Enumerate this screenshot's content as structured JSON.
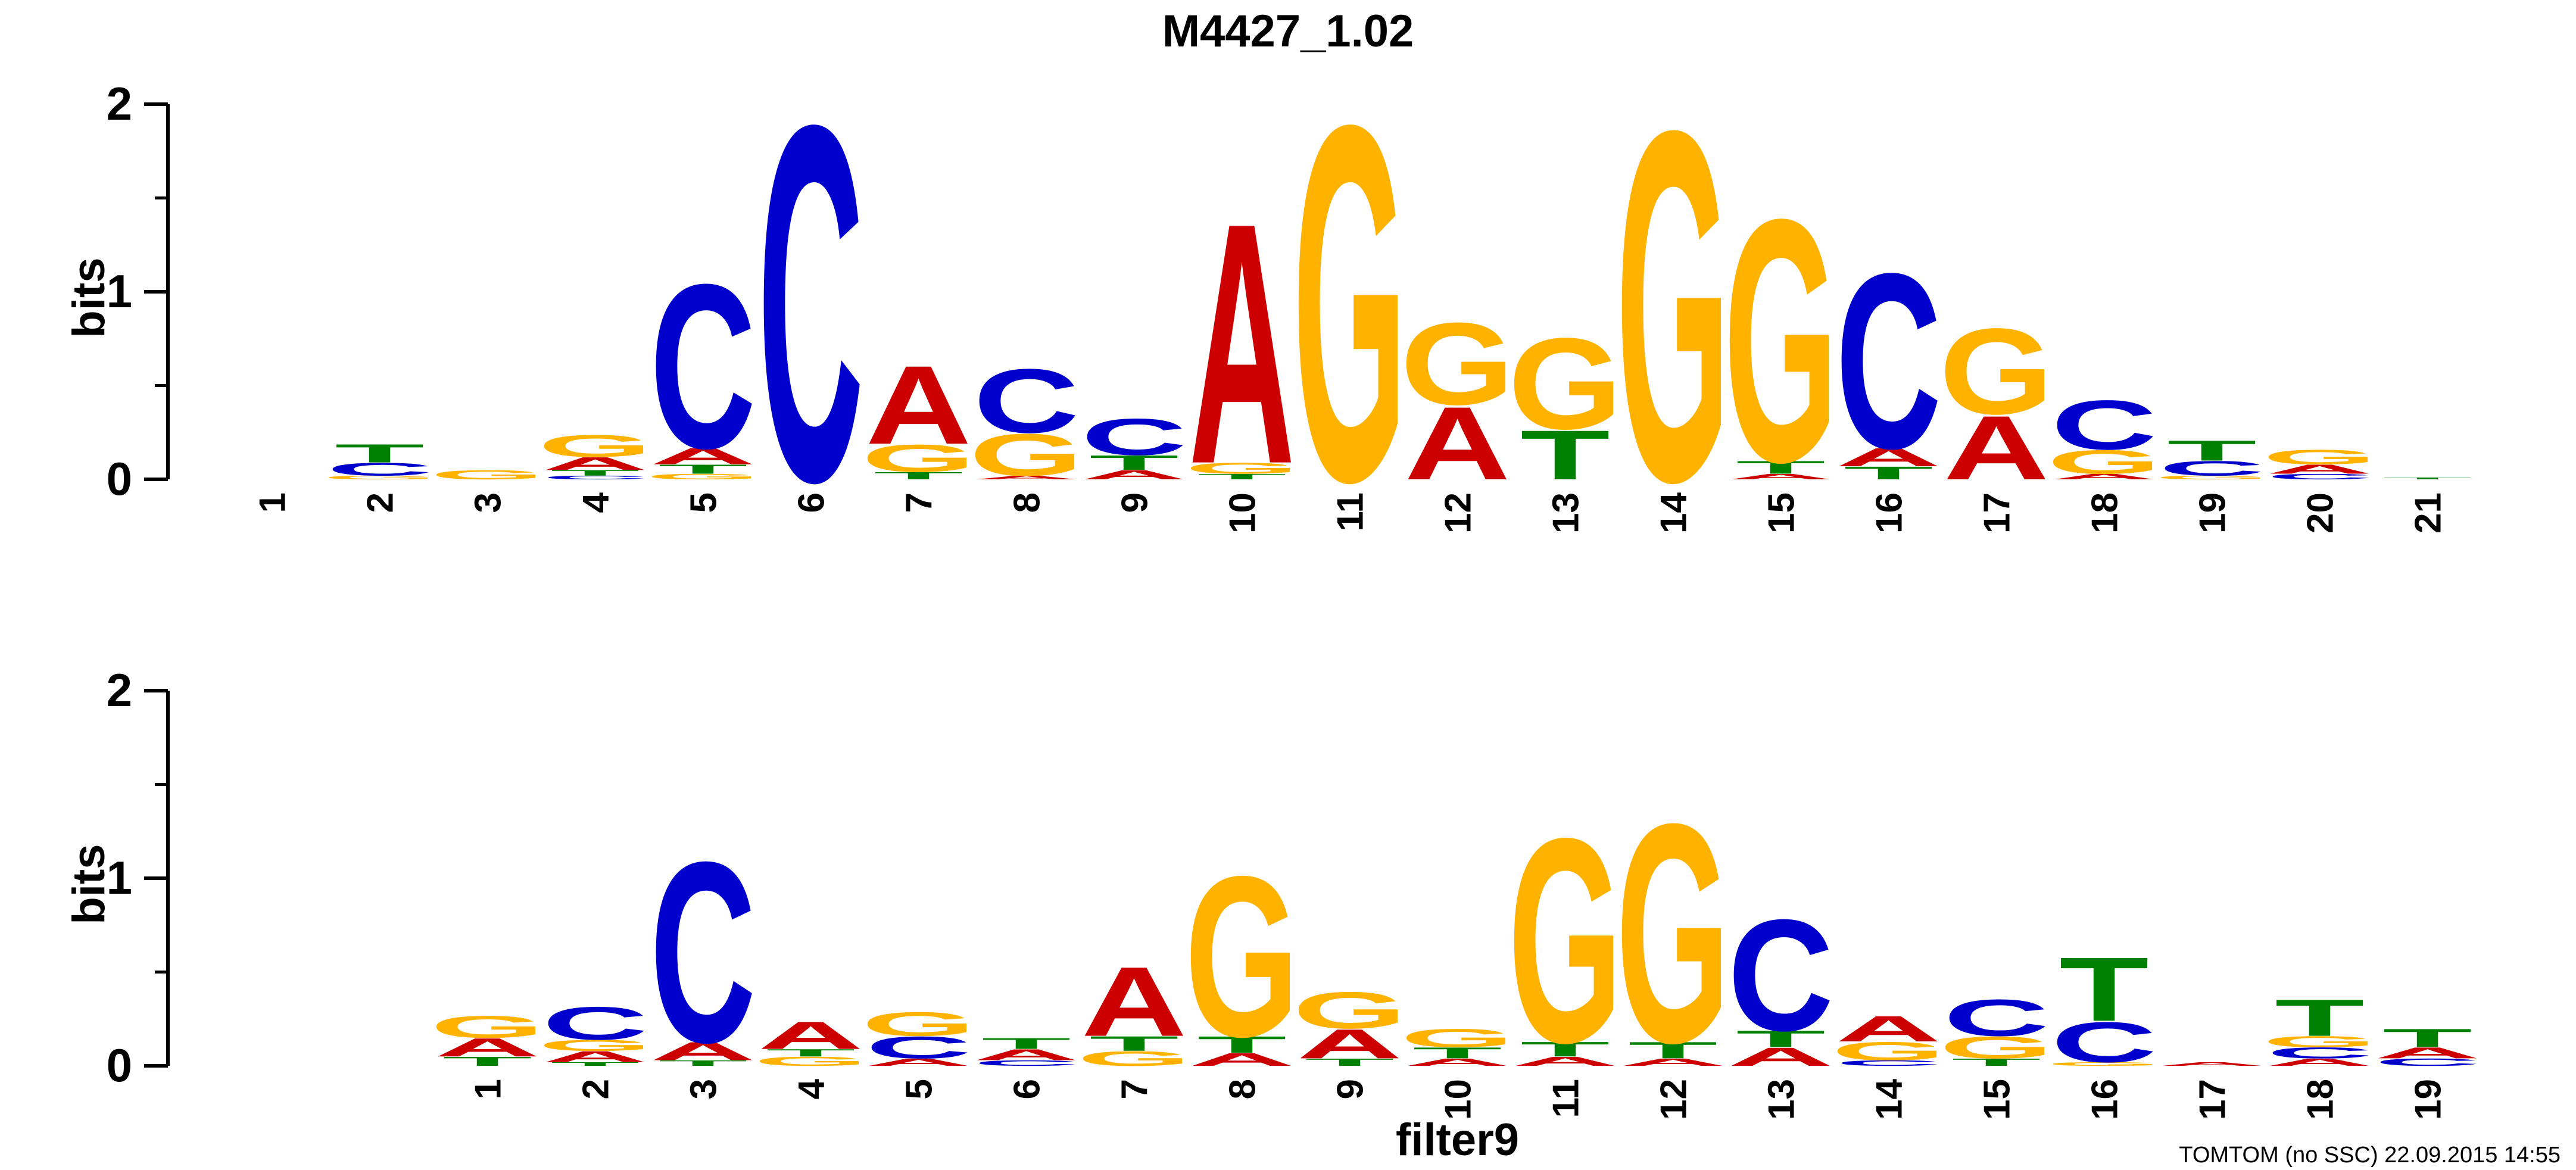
{
  "figure": {
    "title": "M4427_1.02",
    "footer": "TOMTOM (no SSC) 22.09.2015 14:55"
  },
  "colors": {
    "A": "#cc0000",
    "C": "#0000cc",
    "G": "#ffb300",
    "T": "#008000"
  },
  "chart_data": [
    {
      "type": "sequence-logo",
      "title": "M4427_1.02",
      "ylabel": "bits",
      "xlabel": "",
      "ylim": [
        0,
        2
      ],
      "yticks": [
        "0",
        "1",
        "2"
      ],
      "positions": [
        {
          "label": "1",
          "letters": []
        },
        {
          "label": "2",
          "letters": [
            {
              "b": "G",
              "h": 0.02
            },
            {
              "b": "C",
              "h": 0.07
            },
            {
              "b": "T",
              "h": 0.1
            }
          ]
        },
        {
          "label": "3",
          "letters": [
            {
              "b": "G",
              "h": 0.05
            }
          ]
        },
        {
          "label": "4",
          "letters": [
            {
              "b": "C",
              "h": 0.02
            },
            {
              "b": "T",
              "h": 0.03
            },
            {
              "b": "A",
              "h": 0.07
            },
            {
              "b": "G",
              "h": 0.12
            }
          ]
        },
        {
          "label": "5",
          "letters": [
            {
              "b": "G",
              "h": 0.03
            },
            {
              "b": "T",
              "h": 0.05
            },
            {
              "b": "A",
              "h": 0.09
            },
            {
              "b": "C",
              "h": 0.9
            }
          ]
        },
        {
          "label": "6",
          "letters": [
            {
              "b": "C",
              "h": 1.95
            }
          ]
        },
        {
          "label": "7",
          "letters": [
            {
              "b": "T",
              "h": 0.04
            },
            {
              "b": "G",
              "h": 0.15
            },
            {
              "b": "A",
              "h": 0.43
            }
          ]
        },
        {
          "label": "8",
          "letters": [
            {
              "b": "A",
              "h": 0.02
            },
            {
              "b": "G",
              "h": 0.23
            },
            {
              "b": "C",
              "h": 0.35
            }
          ]
        },
        {
          "label": "9",
          "letters": [
            {
              "b": "A",
              "h": 0.05
            },
            {
              "b": "T",
              "h": 0.08
            },
            {
              "b": "C",
              "h": 0.2
            }
          ]
        },
        {
          "label": "10",
          "letters": [
            {
              "b": "T",
              "h": 0.03
            },
            {
              "b": "G",
              "h": 0.06
            },
            {
              "b": "A",
              "h": 1.32
            }
          ]
        },
        {
          "label": "11",
          "letters": [
            {
              "b": "G",
              "h": 1.95
            }
          ]
        },
        {
          "label": "12",
          "letters": [
            {
              "b": "A",
              "h": 0.4
            },
            {
              "b": "G",
              "h": 0.45
            }
          ]
        },
        {
          "label": "13",
          "letters": [
            {
              "b": "T",
              "h": 0.27
            },
            {
              "b": "G",
              "h": 0.5
            }
          ]
        },
        {
          "label": "14",
          "letters": [
            {
              "b": "G",
              "h": 1.92
            }
          ]
        },
        {
          "label": "15",
          "letters": [
            {
              "b": "A",
              "h": 0.03
            },
            {
              "b": "T",
              "h": 0.07
            },
            {
              "b": "G",
              "h": 1.33
            }
          ]
        },
        {
          "label": "16",
          "letters": [
            {
              "b": "T",
              "h": 0.07
            },
            {
              "b": "A",
              "h": 0.1
            },
            {
              "b": "C",
              "h": 0.96
            }
          ]
        },
        {
          "label": "17",
          "letters": [
            {
              "b": "A",
              "h": 0.35
            },
            {
              "b": "G",
              "h": 0.47
            }
          ]
        },
        {
          "label": "18",
          "letters": [
            {
              "b": "A",
              "h": 0.03
            },
            {
              "b": "G",
              "h": 0.13
            },
            {
              "b": "C",
              "h": 0.27
            }
          ]
        },
        {
          "label": "19",
          "letters": [
            {
              "b": "G",
              "h": 0.02
            },
            {
              "b": "C",
              "h": 0.08
            },
            {
              "b": "T",
              "h": 0.11
            }
          ]
        },
        {
          "label": "20",
          "letters": [
            {
              "b": "C",
              "h": 0.03
            },
            {
              "b": "A",
              "h": 0.05
            },
            {
              "b": "G",
              "h": 0.08
            }
          ]
        },
        {
          "label": "21",
          "letters": [
            {
              "b": "T",
              "h": 0.01
            }
          ]
        }
      ]
    },
    {
      "type": "sequence-logo",
      "title": "",
      "ylabel": "bits",
      "xlabel": "filter9",
      "ylim": [
        0,
        2
      ],
      "yticks": [
        "0",
        "1",
        "2"
      ],
      "offset": 2,
      "positions": [
        {
          "label": "1",
          "letters": [
            {
              "b": "T",
              "h": 0.05
            },
            {
              "b": "A",
              "h": 0.1
            },
            {
              "b": "G",
              "h": 0.12
            }
          ]
        },
        {
          "label": "2",
          "letters": [
            {
              "b": "T",
              "h": 0.02
            },
            {
              "b": "A",
              "h": 0.06
            },
            {
              "b": "G",
              "h": 0.06
            },
            {
              "b": "C",
              "h": 0.18
            }
          ]
        },
        {
          "label": "3",
          "letters": [
            {
              "b": "T",
              "h": 0.03
            },
            {
              "b": "A",
              "h": 0.1
            },
            {
              "b": "C",
              "h": 0.99
            }
          ]
        },
        {
          "label": "4",
          "letters": [
            {
              "b": "G",
              "h": 0.05
            },
            {
              "b": "T",
              "h": 0.04
            },
            {
              "b": "A",
              "h": 0.15
            }
          ]
        },
        {
          "label": "5",
          "letters": [
            {
              "b": "A",
              "h": 0.04
            },
            {
              "b": "C",
              "h": 0.12
            },
            {
              "b": "G",
              "h": 0.13
            }
          ]
        },
        {
          "label": "6",
          "letters": [
            {
              "b": "C",
              "h": 0.03
            },
            {
              "b": "A",
              "h": 0.06
            },
            {
              "b": "T",
              "h": 0.06
            }
          ]
        },
        {
          "label": "7",
          "letters": [
            {
              "b": "G",
              "h": 0.08
            },
            {
              "b": "T",
              "h": 0.08
            },
            {
              "b": "A",
              "h": 0.38
            }
          ]
        },
        {
          "label": "8",
          "letters": [
            {
              "b": "A",
              "h": 0.07
            },
            {
              "b": "T",
              "h": 0.09
            },
            {
              "b": "G",
              "h": 0.88
            }
          ]
        },
        {
          "label": "9",
          "letters": [
            {
              "b": "T",
              "h": 0.04
            },
            {
              "b": "A",
              "h": 0.16
            },
            {
              "b": "G",
              "h": 0.2
            }
          ]
        },
        {
          "label": "10",
          "letters": [
            {
              "b": "A",
              "h": 0.04
            },
            {
              "b": "T",
              "h": 0.06
            },
            {
              "b": "G",
              "h": 0.1
            }
          ]
        },
        {
          "label": "11",
          "letters": [
            {
              "b": "A",
              "h": 0.05
            },
            {
              "b": "T",
              "h": 0.08
            },
            {
              "b": "G",
              "h": 1.12
            }
          ]
        },
        {
          "label": "12",
          "letters": [
            {
              "b": "A",
              "h": 0.04
            },
            {
              "b": "T",
              "h": 0.09
            },
            {
              "b": "G",
              "h": 1.2
            }
          ]
        },
        {
          "label": "13",
          "letters": [
            {
              "b": "A",
              "h": 0.1
            },
            {
              "b": "T",
              "h": 0.09
            },
            {
              "b": "C",
              "h": 0.61
            }
          ]
        },
        {
          "label": "14",
          "letters": [
            {
              "b": "C",
              "h": 0.03
            },
            {
              "b": "G",
              "h": 0.1
            },
            {
              "b": "A",
              "h": 0.14
            }
          ]
        },
        {
          "label": "15",
          "letters": [
            {
              "b": "T",
              "h": 0.04
            },
            {
              "b": "G",
              "h": 0.12
            },
            {
              "b": "C",
              "h": 0.2
            }
          ]
        },
        {
          "label": "16",
          "letters": [
            {
              "b": "G",
              "h": 0.02
            },
            {
              "b": "C",
              "h": 0.22
            },
            {
              "b": "T",
              "h": 0.35
            }
          ]
        },
        {
          "label": "17",
          "letters": [
            {
              "b": "A",
              "h": 0.02
            }
          ]
        },
        {
          "label": "18",
          "letters": [
            {
              "b": "A",
              "h": 0.04
            },
            {
              "b": "C",
              "h": 0.06
            },
            {
              "b": "G",
              "h": 0.06
            },
            {
              "b": "T",
              "h": 0.2
            }
          ]
        },
        {
          "label": "19",
          "letters": [
            {
              "b": "C",
              "h": 0.04
            },
            {
              "b": "A",
              "h": 0.06
            },
            {
              "b": "T",
              "h": 0.1
            }
          ]
        }
      ]
    }
  ]
}
